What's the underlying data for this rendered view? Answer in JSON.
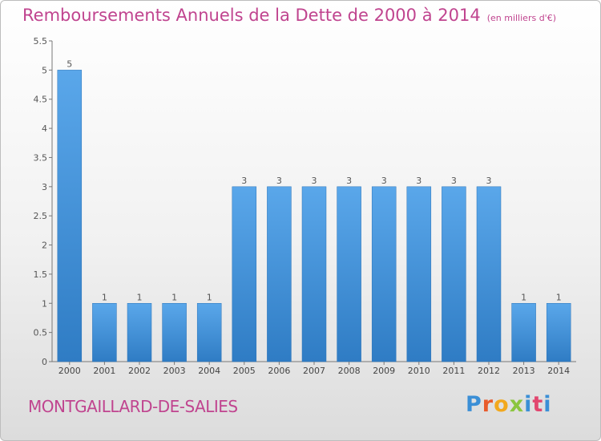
{
  "title": "Remboursements Annuels de la Dette de 2000 à 2014",
  "title_unit": "(en milliers d'€)",
  "town": "MONTGAILLARD-DE-SALIES",
  "logo": {
    "p": "P",
    "r": "r",
    "o": "o",
    "x": "x",
    "i": "i",
    "t": "t",
    "i2": "i"
  },
  "colors": {
    "bar": "#3f8fd6",
    "title": "#c0448f"
  },
  "chart_data": {
    "type": "bar",
    "title": "Remboursements Annuels de la Dette de 2000 à 2014",
    "ylabel": "en milliers d'€",
    "xlabel": "",
    "categories": [
      "2000",
      "2001",
      "2002",
      "2003",
      "2004",
      "2005",
      "2006",
      "2007",
      "2008",
      "2009",
      "2010",
      "2011",
      "2012",
      "2013",
      "2014"
    ],
    "values": [
      5,
      1,
      1,
      1,
      1,
      3,
      3,
      3,
      3,
      3,
      3,
      3,
      3,
      1,
      1
    ],
    "labels": [
      "5",
      "1",
      "1",
      "1",
      "1",
      "3",
      "3",
      "3",
      "3",
      "3",
      "3",
      "3",
      "3",
      "1",
      "1"
    ],
    "ylim": [
      0,
      5.5
    ],
    "yticks": [
      "0",
      "0.5",
      "1",
      "1.5",
      "2",
      "2.5",
      "3",
      "3.5",
      "4",
      "4.5",
      "5",
      "5.5"
    ],
    "ytick_values": [
      0,
      0.5,
      1,
      1.5,
      2,
      2.5,
      3,
      3.5,
      4,
      4.5,
      5,
      5.5
    ],
    "grid": false
  }
}
